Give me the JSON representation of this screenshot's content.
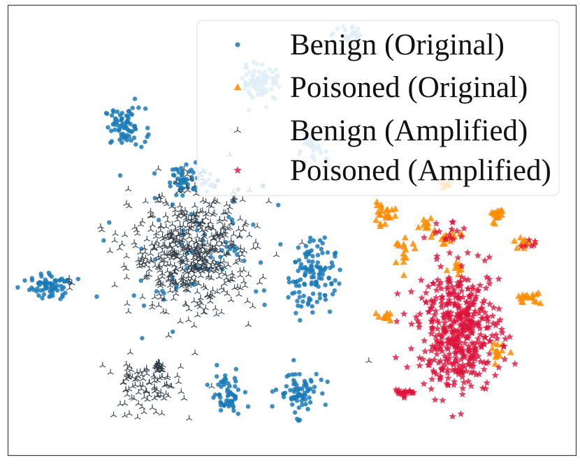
{
  "chart_data": {
    "type": "scatter",
    "title": "",
    "xlabel": "",
    "ylabel": "",
    "axes_ticks": false,
    "xlim": [
      0,
      100
    ],
    "ylim": [
      0,
      100
    ],
    "legend_position": "top-right",
    "series": [
      {
        "name": "Benign (Original)",
        "marker": "circle",
        "color": "#1f77b4",
        "clusters": [
          {
            "shade": "#1a7ab8",
            "center": [
              20.5,
              73.0
            ],
            "spread": [
              3.0,
              3.5
            ],
            "count": 75
          },
          {
            "shade": "#1a7ab8",
            "center": [
              7.5,
              37.5
            ],
            "spread": [
              3.0,
              2.4
            ],
            "count": 70
          },
          {
            "shade": "#1a7ab8",
            "center": [
              31.0,
              61.5
            ],
            "spread": [
              2.4,
              3.0
            ],
            "count": 45
          },
          {
            "shade": "#1a7ab8",
            "center": [
              53.5,
              40.0
            ],
            "spread": [
              3.4,
              7.0
            ],
            "count": 120
          },
          {
            "shade": "#1a7ab8",
            "center": [
              38.5,
              13.5
            ],
            "spread": [
              2.4,
              4.0
            ],
            "count": 60
          },
          {
            "shade": "#1a7ab8",
            "center": [
              51.0,
              14.0
            ],
            "spread": [
              3.0,
              4.0
            ],
            "count": 75
          },
          {
            "shade": "#1a7ab8",
            "center": [
              33.0,
              45.0
            ],
            "spread": [
              13.0,
              13.0
            ],
            "count": 70
          },
          {
            "shade": "#6eb1dc",
            "center": [
              44.5,
              83.0
            ],
            "spread": [
              3.0,
              3.5
            ],
            "count": 80
          },
          {
            "shade": "#6eb1dc",
            "center": [
              60.0,
              93.0
            ],
            "spread": [
              2.2,
              1.8
            ],
            "count": 25
          },
          {
            "shade": "#6eb1dc",
            "center": [
              53.5,
              68.0
            ],
            "spread": [
              2.0,
              2.8
            ],
            "count": 30
          },
          {
            "shade": "#6eb1dc",
            "center": [
              34.5,
              60.5
            ],
            "spread": [
              1.4,
              2.4
            ],
            "count": 12
          }
        ]
      },
      {
        "name": "Poisoned (Original)",
        "marker": "triangle",
        "color": "#ff8c00",
        "clusters": [
          {
            "center": [
              66.0,
              53.5
            ],
            "spread": [
              1.8,
              1.8
            ],
            "count": 22
          },
          {
            "center": [
              73.5,
              51.0
            ],
            "spread": [
              1.6,
              1.6
            ],
            "count": 12
          },
          {
            "center": [
              78.0,
              48.0
            ],
            "spread": [
              2.0,
              1.5
            ],
            "count": 15
          },
          {
            "center": [
              86.0,
              53.5
            ],
            "spread": [
              1.0,
              1.8
            ],
            "count": 18
          },
          {
            "center": [
              91.0,
              47.5
            ],
            "spread": [
              1.4,
              1.0
            ],
            "count": 15
          },
          {
            "center": [
              70.0,
              45.0
            ],
            "spread": [
              1.5,
              2.5
            ],
            "count": 15
          },
          {
            "center": [
              91.5,
              35.0
            ],
            "spread": [
              2.0,
              1.0
            ],
            "count": 18
          },
          {
            "center": [
              66.5,
              31.0
            ],
            "spread": [
              1.2,
              1.2
            ],
            "count": 10
          },
          {
            "center": [
              86.5,
              22.5
            ],
            "spread": [
              1.6,
              2.0
            ],
            "count": 14
          },
          {
            "center": [
              77.0,
              60.0
            ],
            "spread": [
              0.8,
              0.8
            ],
            "count": 5
          },
          {
            "center": [
              79.0,
              43.0
            ],
            "spread": [
              1.2,
              1.8
            ],
            "count": 10
          }
        ]
      },
      {
        "name": "Benign (Amplified)",
        "marker": "tri_down",
        "color": "#2b3a45",
        "clusters": [
          {
            "center": [
              32.5,
              45.0
            ],
            "spread": [
              9.0,
              11.0
            ],
            "count": 560
          },
          {
            "center": [
              24.0,
              15.0
            ],
            "spread": [
              5.5,
              5.5
            ],
            "count": 95
          },
          {
            "center": [
              26.5,
              19.5
            ],
            "spread": [
              0.6,
              0.7
            ],
            "count": 20
          },
          {
            "center": [
              11.0,
              38.0
            ],
            "spread": [
              1.0,
              1.0
            ],
            "count": 4
          },
          {
            "center": [
              63.5,
              21.0
            ],
            "spread": [
              0.3,
              0.3
            ],
            "count": 1
          }
        ]
      },
      {
        "name": "Poisoned (Amplified)",
        "marker": "star",
        "color": "#dc143c",
        "clusters": [
          {
            "center": [
              79.5,
              28.0
            ],
            "spread": [
              6.0,
              11.0
            ],
            "count": 440
          },
          {
            "center": [
              69.5,
              14.0
            ],
            "spread": [
              1.2,
              1.0
            ],
            "count": 20
          },
          {
            "center": [
              77.0,
              50.0
            ],
            "spread": [
              3.5,
              2.0
            ],
            "count": 15
          },
          {
            "center": [
              91.5,
              47.0
            ],
            "spread": [
              1.5,
              1.5
            ],
            "count": 6
          }
        ]
      }
    ]
  }
}
